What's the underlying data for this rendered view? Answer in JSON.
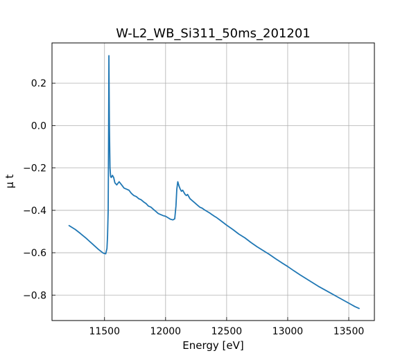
{
  "chart_data": {
    "type": "line",
    "title": "W-L2_WB_Si311_50ms_201201",
    "xlabel": "Energy [eV]",
    "ylabel": "μ t",
    "xlim": [
      11070,
      13710
    ],
    "ylim": [
      -0.92,
      0.39
    ],
    "grid": true,
    "legend": "none",
    "line_color": "#1f77b4",
    "x_ticks": [
      {
        "value": 11500,
        "label": "11500"
      },
      {
        "value": 12000,
        "label": "12000"
      },
      {
        "value": 12500,
        "label": "12500"
      },
      {
        "value": 13000,
        "label": "13000"
      },
      {
        "value": 13500,
        "label": "13500"
      }
    ],
    "y_ticks": [
      {
        "value": 0.2,
        "label": "0.2"
      },
      {
        "value": 0.0,
        "label": "0.0"
      },
      {
        "value": -0.2,
        "label": "−0.2"
      },
      {
        "value": -0.4,
        "label": "−0.4"
      },
      {
        "value": -0.6,
        "label": "−0.6"
      },
      {
        "value": -0.8,
        "label": "−0.8"
      }
    ],
    "series": [
      {
        "x": [
          11210,
          11260,
          11300,
          11350,
          11400,
          11450,
          11490,
          11510,
          11520,
          11525,
          11530,
          11533,
          11536,
          11540,
          11545,
          11550,
          11555,
          11565,
          11575,
          11585,
          11600,
          11620,
          11640,
          11660,
          11680,
          11700,
          11720,
          11740,
          11760,
          11780,
          11800,
          11820,
          11840,
          11860,
          11880,
          11900,
          11920,
          11940,
          11960,
          11980,
          12000,
          12020,
          12040,
          12060,
          12075,
          12085,
          12092,
          12100,
          12110,
          12120,
          12130,
          12140,
          12150,
          12160,
          12170,
          12180,
          12200,
          12220,
          12240,
          12260,
          12280,
          12300,
          12320,
          12340,
          12360,
          12380,
          12400,
          12420,
          12450,
          12500,
          12550,
          12600,
          12650,
          12700,
          12750,
          12800,
          12850,
          12900,
          12950,
          13000,
          13050,
          13100,
          13150,
          13200,
          13250,
          13300,
          13350,
          13400,
          13450,
          13500,
          13550,
          13585
        ],
        "y": [
          -0.472,
          -0.49,
          -0.508,
          -0.532,
          -0.558,
          -0.584,
          -0.602,
          -0.605,
          -0.58,
          -0.52,
          -0.4,
          -0.1,
          0.33,
          0.0,
          -0.2,
          -0.24,
          -0.245,
          -0.235,
          -0.245,
          -0.27,
          -0.28,
          -0.265,
          -0.28,
          -0.295,
          -0.3,
          -0.305,
          -0.32,
          -0.33,
          -0.335,
          -0.345,
          -0.35,
          -0.36,
          -0.368,
          -0.38,
          -0.385,
          -0.395,
          -0.405,
          -0.415,
          -0.42,
          -0.425,
          -0.428,
          -0.435,
          -0.442,
          -0.445,
          -0.44,
          -0.38,
          -0.3,
          -0.265,
          -0.285,
          -0.3,
          -0.31,
          -0.305,
          -0.315,
          -0.325,
          -0.33,
          -0.325,
          -0.345,
          -0.355,
          -0.365,
          -0.375,
          -0.385,
          -0.39,
          -0.398,
          -0.405,
          -0.412,
          -0.42,
          -0.428,
          -0.435,
          -0.448,
          -0.47,
          -0.49,
          -0.512,
          -0.53,
          -0.552,
          -0.572,
          -0.59,
          -0.608,
          -0.628,
          -0.647,
          -0.665,
          -0.685,
          -0.704,
          -0.722,
          -0.74,
          -0.758,
          -0.774,
          -0.79,
          -0.806,
          -0.822,
          -0.838,
          -0.854,
          -0.863
        ]
      }
    ]
  }
}
